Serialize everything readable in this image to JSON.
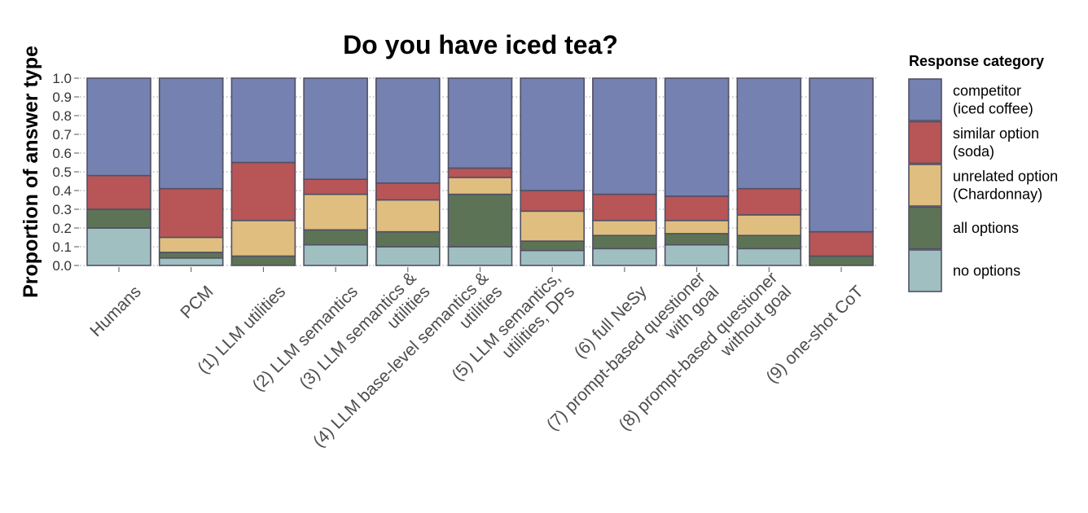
{
  "chart_data": {
    "type": "bar",
    "stacked": true,
    "title": "Do you have iced tea?",
    "xlabel": "",
    "ylabel": "Proportion of answer type",
    "ylim": [
      0,
      1
    ],
    "yticks": [
      "0.0",
      "0.1",
      "0.2",
      "0.3",
      "0.4",
      "0.5",
      "0.6",
      "0.7",
      "0.8",
      "0.9",
      "1.0"
    ],
    "grid": true,
    "legend_position": "right",
    "legend_title": "Response category",
    "categories": [
      [
        "Humans"
      ],
      [
        "PCM"
      ],
      [
        "(1) LLM utilities"
      ],
      [
        "(2) LLM semantics"
      ],
      [
        "(3) LLM semantics &",
        "utilities"
      ],
      [
        "(4) LLM base-level semantics &",
        "utilities"
      ],
      [
        "(5) LLM semantics,",
        "utilities, DPs"
      ],
      [
        "(6) full NeSy"
      ],
      [
        "(7) prompt-based questioner",
        "with goal"
      ],
      [
        "(8) prompt-based questioner",
        "without goal"
      ],
      [
        "(9) one-shot CoT"
      ]
    ],
    "series": [
      {
        "name": "no options",
        "legend_lines": [
          "no options"
        ],
        "color": "#a0bfc1",
        "values": [
          0.2,
          0.04,
          0.0,
          0.11,
          0.1,
          0.1,
          0.08,
          0.09,
          0.11,
          0.09,
          0.0
        ]
      },
      {
        "name": "all options",
        "legend_lines": [
          "all options"
        ],
        "color": "#5d7356",
        "values": [
          0.1,
          0.03,
          0.05,
          0.08,
          0.08,
          0.28,
          0.05,
          0.07,
          0.06,
          0.07,
          0.05
        ]
      },
      {
        "name": "unrelated option (Chardonnay)",
        "legend_lines": [
          "unrelated option",
          "(Chardonnay)"
        ],
        "color": "#dfbe80",
        "values": [
          0.0,
          0.08,
          0.19,
          0.19,
          0.17,
          0.09,
          0.16,
          0.08,
          0.07,
          0.11,
          0.0
        ]
      },
      {
        "name": "similar option (soda)",
        "legend_lines": [
          "similar option",
          "(soda)"
        ],
        "color": "#b85557",
        "values": [
          0.18,
          0.26,
          0.31,
          0.08,
          0.09,
          0.05,
          0.11,
          0.14,
          0.13,
          0.14,
          0.13
        ]
      },
      {
        "name": "competitor (iced coffee)",
        "legend_lines": [
          "competitor",
          "(iced coffee)"
        ],
        "color": "#7581b1",
        "values": [
          0.52,
          0.59,
          0.45,
          0.54,
          0.56,
          0.48,
          0.6,
          0.62,
          0.63,
          0.59,
          0.82
        ]
      }
    ],
    "colors": {
      "bar_outline": "#505063",
      "grid": "#9a9a9a",
      "tick_text": "#333333",
      "xtick_text": "#4d4d4d"
    }
  }
}
